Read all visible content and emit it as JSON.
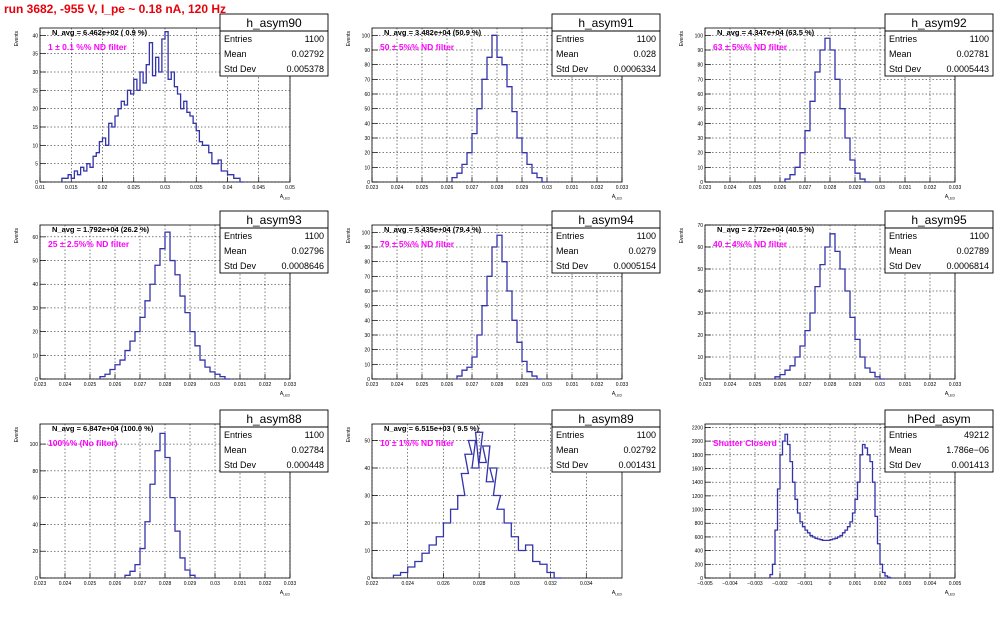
{
  "page_title": "run 3682,  -955 V, I_pe ~ 0.18 nA, 120 Hz",
  "stats_labels": {
    "entries": "Entries",
    "mean": "Mean",
    "std": "Std Dev"
  },
  "colors": {
    "line": "#3333aa",
    "label": "#ff00ff",
    "title": "#e8000b"
  },
  "chart_data": [
    {
      "type": "histogram",
      "name": "h_asym90",
      "ylabel": "Events",
      "xlabel": "A_LED",
      "navg": "N_avg = 6.462e+02 ( 0.9 %)",
      "label": "1 ± 0.1 %% ND filter",
      "entries": "1100",
      "mean": "0.02792",
      "std": "0.005378",
      "xlim": [
        0.01,
        0.05
      ],
      "ylim": [
        0,
        42
      ],
      "xticks": [
        0.01,
        0.015,
        0.02,
        0.025,
        0.03,
        0.035,
        0.04,
        0.045,
        0.05
      ],
      "xticklabels": [
        "0.01",
        "0.015",
        "0.02",
        "0.025",
        "0.03",
        "0.035",
        "0.04",
        "0.045",
        "0.05"
      ],
      "yticks": [
        0,
        5,
        10,
        15,
        20,
        25,
        30,
        35,
        40
      ],
      "x": [
        0.0135,
        0.014,
        0.0145,
        0.015,
        0.0155,
        0.016,
        0.0165,
        0.017,
        0.0175,
        0.018,
        0.0185,
        0.019,
        0.0195,
        0.02,
        0.0205,
        0.021,
        0.0215,
        0.022,
        0.0225,
        0.023,
        0.0235,
        0.024,
        0.0245,
        0.025,
        0.0255,
        0.026,
        0.0265,
        0.027,
        0.0275,
        0.028,
        0.0285,
        0.029,
        0.0295,
        0.03,
        0.0305,
        0.031,
        0.0315,
        0.032,
        0.0325,
        0.033,
        0.0335,
        0.034,
        0.0345,
        0.035,
        0.0355,
        0.036,
        0.0365,
        0.037,
        0.0375,
        0.038,
        0.0385,
        0.039,
        0.0395,
        0.04,
        0.0405,
        0.041,
        0.0415,
        0.042
      ],
      "y": [
        1,
        1,
        2,
        1,
        3,
        2,
        4,
        3,
        5,
        4,
        7,
        8,
        11,
        12,
        10,
        16,
        15,
        18,
        20,
        22,
        21,
        25,
        24,
        28,
        25,
        30,
        27,
        32,
        38,
        29,
        34,
        30,
        39,
        41,
        28,
        30,
        26,
        24,
        20,
        22,
        19,
        18,
        16,
        14,
        11,
        10,
        10,
        8,
        5,
        5,
        6,
        3,
        3,
        2,
        2,
        1,
        1,
        0
      ]
    },
    {
      "type": "histogram",
      "name": "h_asym91",
      "ylabel": "Events",
      "xlabel": "A_LED",
      "navg": "N_avg = 3.482e+04 (50.9 %)",
      "label": "50 ± 5%% ND filter",
      "entries": "1100",
      "mean": "0.028",
      "std": "0.0006334",
      "xlim": [
        0.023,
        0.033
      ],
      "ylim": [
        0,
        105
      ],
      "xticks": [
        0.023,
        0.024,
        0.025,
        0.026,
        0.027,
        0.028,
        0.029,
        0.03,
        0.031,
        0.032,
        0.033
      ],
      "xticklabels": [
        "0.023",
        "0.024",
        "0.025",
        "0.026",
        "0.027",
        "0.028",
        "0.029",
        "0.03",
        "0.031",
        "0.032",
        "0.033"
      ],
      "yticks": [
        0,
        10,
        20,
        30,
        40,
        50,
        60,
        70,
        80,
        90,
        100
      ],
      "x": [
        0.0262,
        0.0264,
        0.0266,
        0.0268,
        0.027,
        0.0272,
        0.0274,
        0.0276,
        0.0278,
        0.028,
        0.0282,
        0.0284,
        0.0286,
        0.0288,
        0.029,
        0.0292,
        0.0294,
        0.0296,
        0.0298
      ],
      "y": [
        3,
        6,
        12,
        20,
        33,
        50,
        70,
        85,
        100,
        85,
        80,
        65,
        48,
        30,
        20,
        12,
        6,
        3,
        0
      ]
    },
    {
      "type": "histogram",
      "name": "h_asym92",
      "ylabel": "Events",
      "xlabel": "A_LED",
      "navg": "N_avg = 4.347e+04 (63.5 %)",
      "label": "63 ± 5%% ND filter",
      "entries": "1100",
      "mean": "0.02781",
      "std": "0.0005443",
      "xlim": [
        0.023,
        0.033
      ],
      "ylim": [
        0,
        105
      ],
      "xticks": [
        0.023,
        0.024,
        0.025,
        0.026,
        0.027,
        0.028,
        0.029,
        0.03,
        0.031,
        0.032,
        0.033
      ],
      "xticklabels": [
        "0.023",
        "0.024",
        "0.025",
        "0.026",
        "0.027",
        "0.028",
        "0.029",
        "0.03",
        "0.031",
        "0.032",
        "0.033"
      ],
      "yticks": [
        0,
        10,
        20,
        30,
        40,
        50,
        60,
        70,
        80,
        90,
        100
      ],
      "x": [
        0.0262,
        0.0264,
        0.0266,
        0.0268,
        0.027,
        0.0272,
        0.0274,
        0.0276,
        0.0278,
        0.028,
        0.0282,
        0.0284,
        0.0286,
        0.0288,
        0.029,
        0.0292,
        0.0294
      ],
      "y": [
        2,
        5,
        10,
        20,
        35,
        55,
        75,
        90,
        98,
        90,
        70,
        50,
        30,
        15,
        6,
        2,
        0
      ]
    },
    {
      "type": "histogram",
      "name": "h_asym93",
      "ylabel": "Events",
      "xlabel": "A_LED",
      "navg": "N_avg = 1.792e+04 (26.2 %)",
      "label": "25 ± 2.5%% ND filter",
      "entries": "1100",
      "mean": "0.02796",
      "std": "0.0008646",
      "xlim": [
        0.023,
        0.033
      ],
      "ylim": [
        0,
        65
      ],
      "xticks": [
        0.023,
        0.024,
        0.025,
        0.026,
        0.027,
        0.028,
        0.029,
        0.03,
        0.031,
        0.032,
        0.033
      ],
      "xticklabels": [
        "0.023",
        "0.024",
        "0.025",
        "0.026",
        "0.027",
        "0.028",
        "0.029",
        "0.03",
        "0.031",
        "0.032",
        "0.033"
      ],
      "yticks": [
        0,
        10,
        20,
        30,
        40,
        50,
        60
      ],
      "x": [
        0.0254,
        0.0256,
        0.0258,
        0.026,
        0.0262,
        0.0264,
        0.0266,
        0.0268,
        0.027,
        0.0272,
        0.0274,
        0.0276,
        0.0278,
        0.028,
        0.0282,
        0.0284,
        0.0286,
        0.0288,
        0.029,
        0.0292,
        0.0294,
        0.0296,
        0.0298,
        0.03,
        0.0302,
        0.0304
      ],
      "y": [
        1,
        2,
        4,
        6,
        8,
        12,
        16,
        20,
        26,
        33,
        40,
        48,
        55,
        62,
        50,
        44,
        35,
        28,
        20,
        14,
        8,
        5,
        3,
        2,
        1,
        0
      ]
    },
    {
      "type": "histogram",
      "name": "h_asym94",
      "ylabel": "Events",
      "xlabel": "A_LED",
      "navg": "N_avg = 5.435e+04 (79.4 %)",
      "label": "79 ± 5%% ND filter",
      "entries": "1100",
      "mean": "0.0279",
      "std": "0.0005154",
      "xlim": [
        0.023,
        0.033
      ],
      "ylim": [
        0,
        105
      ],
      "xticks": [
        0.023,
        0.024,
        0.025,
        0.026,
        0.027,
        0.028,
        0.029,
        0.03,
        0.031,
        0.032,
        0.033
      ],
      "xticklabels": [
        "0.023",
        "0.024",
        "0.025",
        "0.026",
        "0.027",
        "0.028",
        "0.029",
        "0.03",
        "0.031",
        "0.032",
        "0.033"
      ],
      "yticks": [
        0,
        10,
        20,
        30,
        40,
        50,
        60,
        70,
        80,
        90,
        100
      ],
      "x": [
        0.0264,
        0.0266,
        0.0268,
        0.027,
        0.0272,
        0.0274,
        0.0276,
        0.0278,
        0.028,
        0.0282,
        0.0284,
        0.0286,
        0.0288,
        0.029,
        0.0292,
        0.0294,
        0.0296
      ],
      "y": [
        2,
        6,
        8,
        15,
        30,
        50,
        70,
        90,
        98,
        80,
        60,
        40,
        25,
        12,
        5,
        2,
        0
      ]
    },
    {
      "type": "histogram",
      "name": "h_asym95",
      "ylabel": "Events",
      "xlabel": "A_LED",
      "navg": "N_avg = 2.772e+04 (40.5 %)",
      "label": "40 ± 4%% ND filter",
      "entries": "1100",
      "mean": "0.02789",
      "std": "0.0006814",
      "xlim": [
        0.023,
        0.033
      ],
      "ylim": [
        0,
        70
      ],
      "xticks": [
        0.023,
        0.024,
        0.025,
        0.026,
        0.027,
        0.028,
        0.029,
        0.03,
        0.031,
        0.032,
        0.033
      ],
      "xticklabels": [
        "0.023",
        "0.024",
        "0.025",
        "0.026",
        "0.027",
        "0.028",
        "0.029",
        "0.03",
        "0.031",
        "0.032",
        "0.033"
      ],
      "yticks": [
        0,
        10,
        20,
        30,
        40,
        50,
        60,
        70
      ],
      "x": [
        0.0258,
        0.026,
        0.0262,
        0.0264,
        0.0266,
        0.0268,
        0.027,
        0.0272,
        0.0274,
        0.0276,
        0.0278,
        0.028,
        0.0282,
        0.0284,
        0.0286,
        0.0288,
        0.029,
        0.0292,
        0.0294,
        0.0296,
        0.0298,
        0.03
      ],
      "y": [
        1,
        2,
        4,
        6,
        10,
        15,
        22,
        30,
        42,
        52,
        60,
        66,
        58,
        50,
        40,
        28,
        18,
        10,
        5,
        3,
        1,
        0
      ]
    },
    {
      "type": "histogram",
      "name": "h_asym88",
      "ylabel": "Events",
      "xlabel": "A_LED",
      "navg": "N_avg = 6.847e+04 (100.0 %)",
      "label": "100%% (No filter)",
      "entries": "1100",
      "mean": "0.02784",
      "std": "0.000448",
      "xlim": [
        0.023,
        0.033
      ],
      "ylim": [
        0,
        115
      ],
      "xticks": [
        0.023,
        0.024,
        0.025,
        0.026,
        0.027,
        0.028,
        0.029,
        0.03,
        0.031,
        0.032,
        0.033
      ],
      "xticklabels": [
        "0.023",
        "0.024",
        "0.025",
        "0.026",
        "0.027",
        "0.028",
        "0.029",
        "0.03",
        "0.031",
        "0.032",
        "0.033"
      ],
      "yticks": [
        0,
        20,
        40,
        60,
        80,
        100
      ],
      "x": [
        0.0264,
        0.0266,
        0.0268,
        0.027,
        0.0272,
        0.0274,
        0.0276,
        0.0278,
        0.028,
        0.0282,
        0.0284,
        0.0286,
        0.0288,
        0.029,
        0.0292
      ],
      "y": [
        2,
        5,
        10,
        22,
        42,
        70,
        95,
        108,
        90,
        60,
        35,
        15,
        6,
        2,
        0
      ]
    },
    {
      "type": "histogram",
      "name": "h_asym89",
      "ylabel": "Events",
      "xlabel": "A_LED",
      "navg": "N_avg = 6.515e+03 ( 9.5 %)",
      "label": "10 ± 1%% ND filter",
      "entries": "1100",
      "mean": "0.02792",
      "std": "0.001431",
      "xlim": [
        0.022,
        0.036
      ],
      "ylim": [
        0,
        56
      ],
      "xticks": [
        0.022,
        0.024,
        0.026,
        0.028,
        0.03,
        0.032,
        0.034
      ],
      "xticklabels": [
        "0.022",
        "0.024",
        "0.026",
        "0.028",
        "0.03",
        "0.032",
        "0.034"
      ],
      "yticks": [
        0,
        10,
        20,
        30,
        40,
        50
      ],
      "x": [
        0.0232,
        0.0236,
        0.024,
        0.0244,
        0.0248,
        0.0252,
        0.0256,
        0.026,
        0.0264,
        0.0268,
        0.027,
        0.0272,
        0.0274,
        0.0276,
        0.0278,
        0.028,
        0.0282,
        0.0284,
        0.0286,
        0.0288,
        0.029,
        0.0294,
        0.0298,
        0.0302,
        0.0306,
        0.031,
        0.0314,
        0.0318,
        0.0322
      ],
      "y": [
        1,
        2,
        4,
        6,
        9,
        12,
        15,
        20,
        25,
        30,
        38,
        45,
        50,
        40,
        53,
        42,
        48,
        35,
        40,
        30,
        25,
        20,
        15,
        10,
        12,
        6,
        5,
        2,
        0
      ]
    },
    {
      "type": "histogram",
      "name": "hPed_asym",
      "ylabel": "",
      "xlabel": "A_LED",
      "navg": "",
      "label": "Shutter Closerd",
      "entries": "49212",
      "mean": "1.786e−06",
      "std": "0.001413",
      "xlim": [
        -0.005,
        0.005
      ],
      "ylim": [
        0,
        2250
      ],
      "xticks": [
        -0.005,
        -0.004,
        -0.003,
        -0.002,
        -0.001,
        0,
        0.001,
        0.002,
        0.003,
        0.004,
        0.005
      ],
      "xticklabels": [
        "−0.005",
        "−0.004",
        "−0.003",
        "−0.002",
        "−0.001",
        "0",
        "0.001",
        "0.002",
        "0.003",
        "0.004",
        "0.005"
      ],
      "yticks": [
        0,
        200,
        400,
        600,
        800,
        1000,
        1200,
        1400,
        1600,
        1800,
        2000,
        2200
      ],
      "x": [
        -0.0024,
        -0.0023,
        -0.0022,
        -0.0021,
        -0.002,
        -0.0019,
        -0.0018,
        -0.0017,
        -0.0016,
        -0.0015,
        -0.0014,
        -0.0013,
        -0.0012,
        -0.0011,
        -0.001,
        -0.0009,
        -0.0008,
        -0.0007,
        -0.0006,
        -0.0005,
        -0.0004,
        -0.0003,
        -0.0002,
        -0.0001,
        0,
        0.0001,
        0.0002,
        0.0003,
        0.0004,
        0.0005,
        0.0006,
        0.0007,
        0.0008,
        0.0009,
        0.001,
        0.0011,
        0.0012,
        0.0013,
        0.0014,
        0.0015,
        0.0016,
        0.0017,
        0.0018,
        0.0019,
        0.002,
        0.0021,
        0.0022,
        0.0023,
        0.0024
      ],
      "y": [
        50,
        200,
        700,
        1300,
        1800,
        2000,
        2100,
        1950,
        1700,
        1400,
        1150,
        950,
        820,
        750,
        700,
        660,
        620,
        600,
        580,
        570,
        560,
        550,
        550,
        550,
        560,
        570,
        580,
        600,
        620,
        660,
        700,
        750,
        820,
        950,
        1150,
        1400,
        1800,
        1950,
        1900,
        1800,
        1700,
        1400,
        900,
        500,
        200,
        80,
        30,
        10,
        0
      ]
    }
  ]
}
